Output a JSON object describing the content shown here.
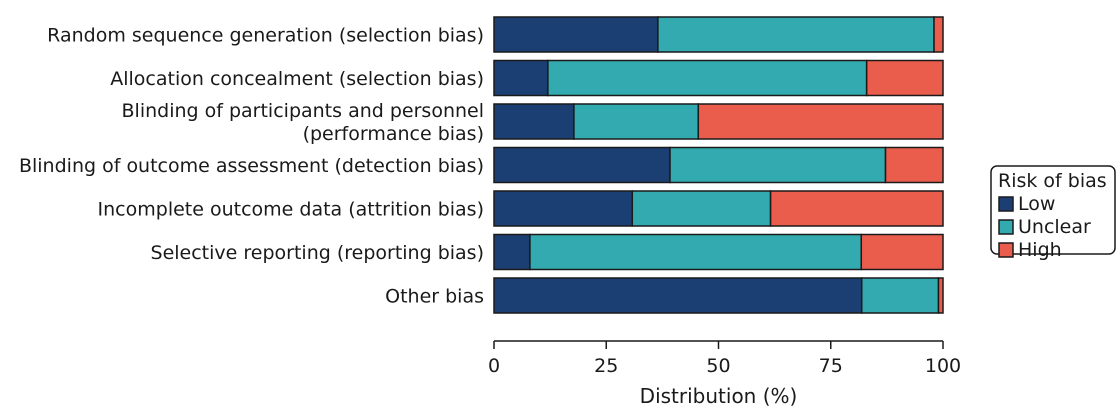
{
  "chart_data": {
    "type": "bar",
    "orientation": "horizontal",
    "stacked": true,
    "xlabel": "Distribution (%)",
    "ylabel": "",
    "xlim": [
      0,
      100
    ],
    "xticks": [
      0,
      25,
      50,
      75,
      100
    ],
    "grid": false,
    "categories": [
      [
        "Random sequence generation (selection bias)"
      ],
      [
        "Allocation concealment (selection bias)"
      ],
      [
        "Blinding of participants and personnel",
        "(performance bias)"
      ],
      [
        "Blinding of outcome assessment (detection bias)"
      ],
      [
        "Incomplete outcome data (attrition bias)"
      ],
      [
        "Selective reporting (reporting bias)"
      ],
      [
        "Other bias"
      ]
    ],
    "series": [
      {
        "name": "Low",
        "color": "#1c3f73",
        "values": [
          36.5,
          12.0,
          17.8,
          39.2,
          30.8,
          8.0,
          81.9
        ]
      },
      {
        "name": "Unclear",
        "color": "#33aab0",
        "values": [
          61.5,
          71.0,
          27.7,
          48.0,
          30.8,
          73.8,
          17.1
        ]
      },
      {
        "name": "High",
        "color": "#ea5c4c",
        "values": [
          2.0,
          17.0,
          54.5,
          12.8,
          38.4,
          18.2,
          1.0
        ]
      }
    ],
    "legend": {
      "title": "Risk of bias",
      "position": "right"
    }
  }
}
